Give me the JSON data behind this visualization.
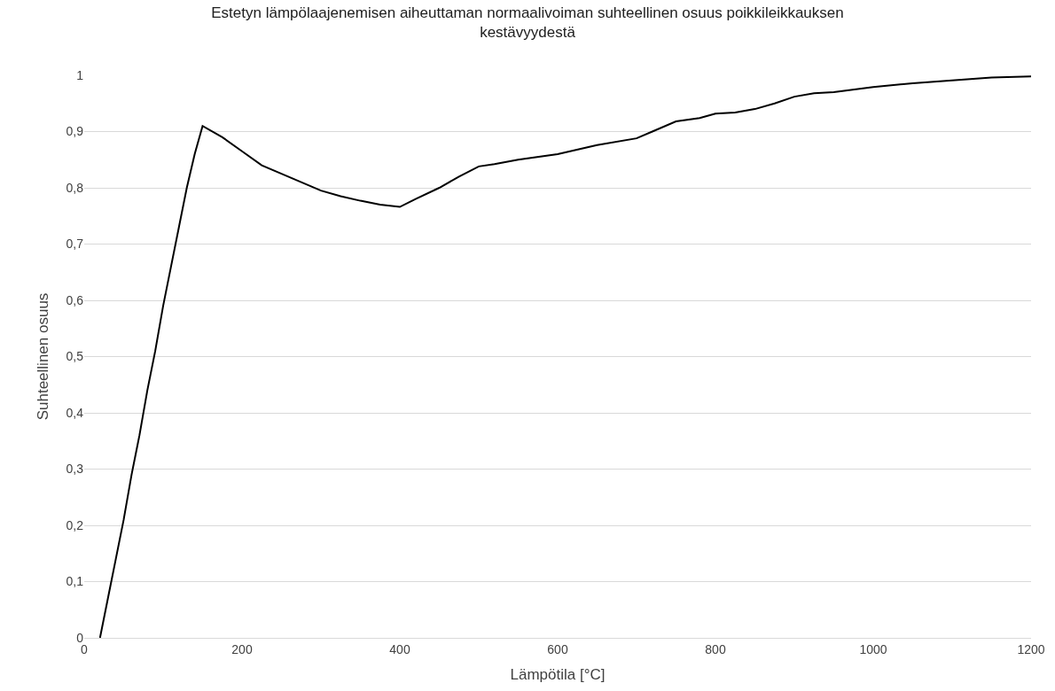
{
  "chart_data": {
    "type": "line",
    "title": "Estetyn lämpölaajenemisen aiheuttaman normaalivoiman suhteellinen osuus poikkileikkauksen kestävyydestä",
    "xlabel": "Lämpötila [°C]",
    "ylabel": "Suhteellinen osuus",
    "x": [
      20,
      30,
      40,
      50,
      60,
      70,
      80,
      90,
      100,
      110,
      120,
      130,
      140,
      150,
      175,
      200,
      225,
      250,
      275,
      300,
      325,
      350,
      375,
      400,
      420,
      450,
      475,
      500,
      520,
      550,
      600,
      650,
      700,
      720,
      750,
      780,
      800,
      825,
      850,
      875,
      900,
      925,
      950,
      1000,
      1050,
      1100,
      1150,
      1200
    ],
    "series": [
      {
        "color": "#000000",
        "values": [
          0,
          0.07,
          0.14,
          0.21,
          0.29,
          0.36,
          0.44,
          0.51,
          0.59,
          0.66,
          0.73,
          0.8,
          0.86,
          0.91,
          0.89,
          0.865,
          0.84,
          0.825,
          0.81,
          0.795,
          0.785,
          0.777,
          0.77,
          0.766,
          0.78,
          0.8,
          0.82,
          0.838,
          0.842,
          0.85,
          0.86,
          0.876,
          0.888,
          0.9,
          0.918,
          0.924,
          0.932,
          0.934,
          0.94,
          0.95,
          0.962,
          0.968,
          0.97,
          0.979,
          0.986,
          0.991,
          0.996,
          0.998
        ]
      }
    ],
    "xlim": [
      0,
      1200
    ],
    "xticks": [
      0,
      200,
      400,
      600,
      800,
      1000,
      1200
    ],
    "ylim": [
      0,
      1
    ],
    "yticks": [
      0,
      {
        "value": 0.1,
        "label": "0,1"
      },
      {
        "value": 0.2,
        "label": "0,2"
      },
      {
        "value": 0.3,
        "label": "0,3"
      },
      {
        "value": 0.4,
        "label": "0,4"
      },
      {
        "value": 0.5,
        "label": "0,5"
      },
      {
        "value": 0.6,
        "label": "0,6"
      },
      {
        "value": 0.7,
        "label": "0,7"
      },
      {
        "value": 0.8,
        "label": "0,8"
      },
      {
        "value": 0.9,
        "label": "0,9"
      },
      1
    ],
    "grid": "y",
    "line_style": "solid",
    "marker": "none"
  }
}
